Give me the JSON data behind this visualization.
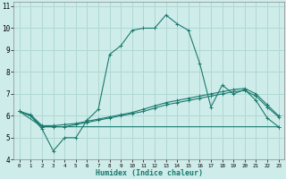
{
  "title": "",
  "xlabel": "Humidex (Indice chaleur)",
  "xlim": [
    -0.5,
    23.5
  ],
  "ylim": [
    4,
    11.2
  ],
  "yticks": [
    4,
    5,
    6,
    7,
    8,
    9,
    10,
    11
  ],
  "xticks": [
    0,
    1,
    2,
    3,
    4,
    5,
    6,
    7,
    8,
    9,
    10,
    11,
    12,
    13,
    14,
    15,
    16,
    17,
    18,
    19,
    20,
    21,
    22,
    23
  ],
  "bg_color": "#ceecea",
  "grid_color": "#b0d8d4",
  "line_color": "#1a7a6e",
  "line1_x": [
    0,
    1,
    2,
    3,
    4,
    5,
    6,
    7,
    8,
    9,
    10,
    11,
    12,
    13,
    14,
    15,
    16,
    17,
    18,
    19,
    20,
    21,
    22,
    23
  ],
  "line1_y": [
    6.2,
    6.0,
    5.4,
    4.4,
    5.0,
    5.0,
    5.8,
    6.3,
    8.8,
    9.2,
    9.9,
    10.0,
    10.0,
    10.6,
    10.2,
    9.9,
    8.4,
    6.4,
    7.4,
    7.0,
    7.2,
    6.7,
    5.9,
    5.5
  ],
  "line2_x": [
    0,
    1,
    2,
    3,
    4,
    5,
    6,
    7,
    8,
    9,
    10,
    11,
    12,
    13,
    14,
    15,
    16,
    17,
    18,
    19,
    20,
    21,
    22,
    23
  ],
  "line2_y": [
    6.2,
    6.0,
    5.5,
    5.5,
    5.5,
    5.6,
    5.7,
    5.8,
    5.9,
    6.0,
    6.1,
    6.2,
    6.35,
    6.5,
    6.6,
    6.7,
    6.8,
    6.9,
    7.0,
    7.1,
    7.15,
    6.9,
    6.4,
    5.95
  ],
  "line3_x": [
    0,
    1,
    2,
    3,
    4,
    5,
    6,
    7,
    8,
    9,
    10,
    11,
    12,
    13,
    14,
    15,
    16,
    17,
    18,
    19,
    20,
    21,
    22,
    23
  ],
  "line3_y": [
    6.2,
    6.05,
    5.55,
    5.55,
    5.6,
    5.65,
    5.75,
    5.85,
    5.95,
    6.05,
    6.15,
    6.3,
    6.45,
    6.6,
    6.7,
    6.8,
    6.9,
    7.0,
    7.1,
    7.2,
    7.25,
    7.0,
    6.5,
    6.0
  ],
  "line4_x": [
    0,
    2,
    23
  ],
  "line4_y": [
    6.2,
    5.5,
    5.5
  ]
}
